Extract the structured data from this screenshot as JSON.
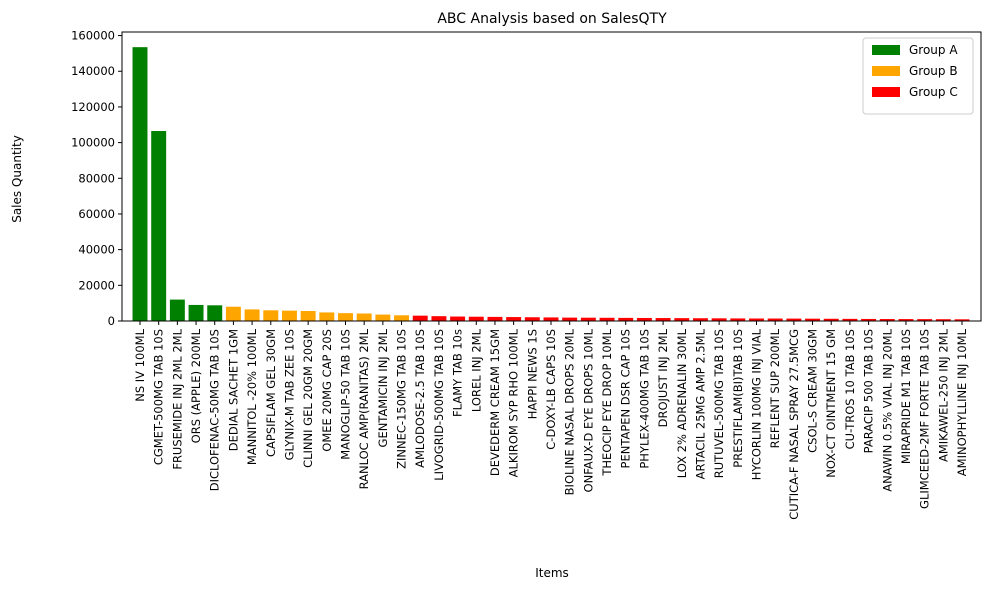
{
  "chart_data": {
    "type": "bar",
    "title": "ABC Analysis based on SalesQTY",
    "xlabel": "Items",
    "ylabel": "Sales Quantity",
    "ylim": [
      0,
      162000
    ],
    "yticks": [
      0,
      20000,
      40000,
      60000,
      80000,
      100000,
      120000,
      140000,
      160000
    ],
    "grid": false,
    "legend_position": "top-right",
    "legend": [
      {
        "name": "Group A",
        "color": "#008000"
      },
      {
        "name": "Group B",
        "color": "#FFA500"
      },
      {
        "name": "Group C",
        "color": "#FF0000"
      }
    ],
    "categories": [
      "NS IV 100ML",
      "CGMET-500MG TAB 10S",
      "FRUSEMIDE INJ 2ML 2ML",
      "ORS (APPLE) 200ML",
      "DICLOFENAC-50MG TAB 10S",
      "DEDIAL SACHET 1GM",
      "MANNITOL -20% 100ML",
      "CAPSIFLAM GEL 30GM",
      "GLYNIX-M TAB ZEE 10S",
      "CLINNI GEL 20GM 20GM",
      "OMEE 20MG CAP 20S",
      "MANOGLIP-50 TAB 10S",
      "RANLOC AMP(RANITAS) 2ML",
      "GENTAMICIN INJ 2ML",
      "ZINNEC-150MG TAB 10S",
      "AMLODOSE-2.5 TAB 10S",
      "LIVOGRID-500MG TAB 10S",
      "FLAMY TAB 10s",
      "LOREL INJ 2ML",
      "DEVEDERM CREAM 15GM",
      "ALKIROM SYP RHO 100ML",
      "HAPPI NEWS 1S",
      "C-DOXY-LB CAPS 10S",
      "BIOLINE NASAL DROPS 20ML",
      "ONFAUX-D EYE DROPS 10ML",
      "THEOCIP EYE DROP 10ML",
      "PENTAPEN DSR CAP 10S",
      "PHYLEX-400MG TAB 10S",
      "DROJUST INJ 2ML",
      "LOX 2% ADRENALIN 30ML",
      "ARTACIL 25MG AMP 2.5ML",
      "RUTUVEL-500MG TAB 10S",
      "PRESTIFLAM(BI)TAB 10S",
      "HYCORLIN 100MG INJ VIAL",
      "REFLENT SUP 200ML",
      "CUTICA-F NASAL SPRAY 27.5MCG",
      "CSOL-S CREAM 30GM",
      "NOX-CT OINTMENT 15 GM",
      "CU-TROS 10 TAB 10S",
      "PARACIP 500 TAB 10S",
      "ANAWIN 0.5% VIAL INJ 20ML",
      "MIRAPRIDE M1 TAB 10S",
      "GLIMCEED-2MF FORTE TAB 10S",
      "AMIKAWEL-250 INJ 2ML",
      "AMINOPHYLLINE INJ 10ML"
    ],
    "values": [
      153500,
      106500,
      12000,
      9000,
      8800,
      8000,
      6500,
      6000,
      5800,
      5600,
      4800,
      4400,
      4200,
      3600,
      3200,
      3000,
      2700,
      2500,
      2400,
      2300,
      2200,
      2100,
      2000,
      1900,
      1850,
      1800,
      1750,
      1700,
      1650,
      1600,
      1550,
      1500,
      1450,
      1400,
      1380,
      1350,
      1300,
      1250,
      1200,
      1150,
      1100,
      1080,
      1050,
      1000,
      950
    ],
    "groups": [
      "A",
      "A",
      "A",
      "A",
      "A",
      "B",
      "B",
      "B",
      "B",
      "B",
      "B",
      "B",
      "B",
      "B",
      "B",
      "C",
      "C",
      "C",
      "C",
      "C",
      "C",
      "C",
      "C",
      "C",
      "C",
      "C",
      "C",
      "C",
      "C",
      "C",
      "C",
      "C",
      "C",
      "C",
      "C",
      "C",
      "C",
      "C",
      "C",
      "C",
      "C",
      "C",
      "C",
      "C",
      "C"
    ]
  }
}
